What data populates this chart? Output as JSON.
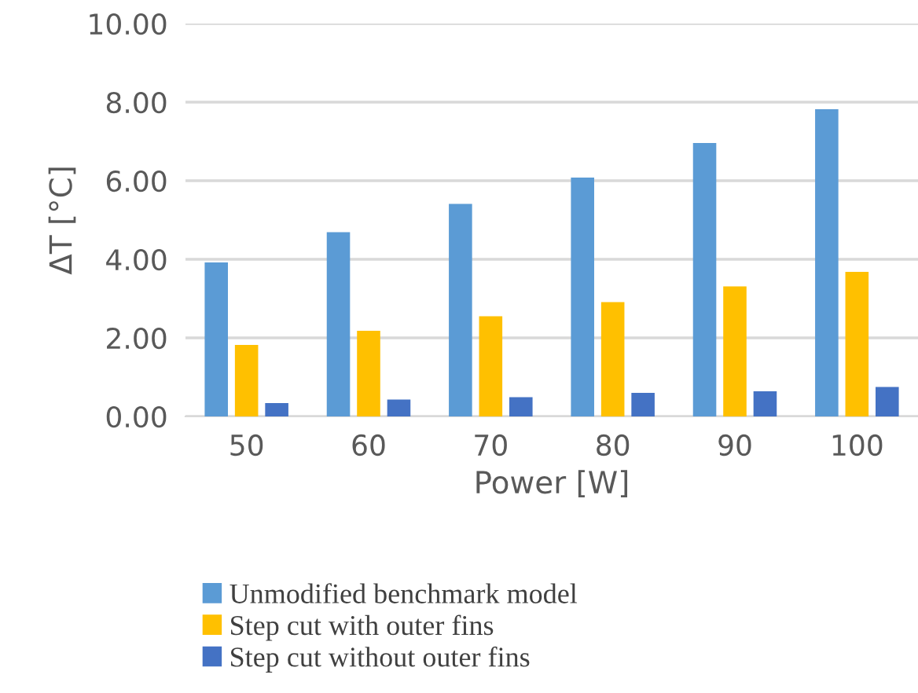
{
  "chart_data": {
    "type": "bar",
    "xlabel": "Power [W]",
    "ylabel": "ΔT [°C]",
    "categories": [
      "50",
      "60",
      "70",
      "80",
      "90",
      "100"
    ],
    "series": [
      {
        "name": "Unmodified benchmark model",
        "color": "#5b9bd5",
        "values": [
          3.92,
          4.69,
          5.41,
          6.08,
          6.96,
          7.82
        ]
      },
      {
        "name": "Step cut with outer fins",
        "color": "#ffc000",
        "values": [
          1.82,
          2.18,
          2.55,
          2.91,
          3.31,
          3.68
        ]
      },
      {
        "name": "Step cut without outer fins",
        "color": "#4472c4",
        "values": [
          0.34,
          0.43,
          0.49,
          0.6,
          0.64,
          0.75
        ]
      }
    ],
    "ylim": [
      0,
      10
    ],
    "yticks": [
      {
        "value": 0,
        "label": "0.00"
      },
      {
        "value": 2,
        "label": "2.00"
      },
      {
        "value": 4,
        "label": "4.00"
      },
      {
        "value": 6,
        "label": "6.00"
      },
      {
        "value": 8,
        "label": "8.00"
      },
      {
        "value": 10,
        "label": "10.00"
      }
    ],
    "grid": "y",
    "legend": "bottom"
  }
}
